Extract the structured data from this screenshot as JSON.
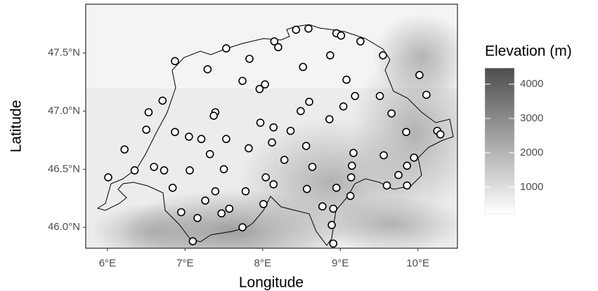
{
  "chart_data": {
    "type": "scatter",
    "x_label": "Longitude",
    "y_label": "Latitude",
    "xlim": [
      5.72,
      10.51
    ],
    "ylim": [
      45.82,
      47.92
    ],
    "xticks": [
      {
        "value": 6,
        "label": "6°E"
      },
      {
        "value": 7,
        "label": "7°E"
      },
      {
        "value": 8,
        "label": "8°E"
      },
      {
        "value": 9,
        "label": "9°E"
      },
      {
        "value": 10,
        "label": "10°E"
      }
    ],
    "yticks": [
      {
        "value": 46.0,
        "label": "46.0°N"
      },
      {
        "value": 46.5,
        "label": "46.5°N"
      },
      {
        "value": 47.0,
        "label": "47.0°N"
      },
      {
        "value": 47.5,
        "label": "47.5°N"
      }
    ],
    "marker_fill": "#ffffff",
    "marker_stroke": "#000000",
    "x": [
      8.43,
      8.59,
      8.95,
      9.01,
      8.15,
      8.2,
      9.26,
      7.53,
      9.55,
      6.87,
      7.83,
      8.87,
      8.52,
      10.02,
      7.29,
      9.08,
      7.74,
      8.03,
      7.96,
      10.11,
      9.19,
      9.51,
      8.6,
      6.71,
      6.53,
      7.39,
      7.37,
      9.04,
      8.49,
      9.66,
      7.97,
      8.14,
      6.5,
      6.87,
      7.05,
      7.21,
      7.53,
      8.36,
      8.86,
      8.12,
      7.82,
      8.56,
      7.32,
      9.17,
      10.25,
      10.29,
      9.85,
      6.22,
      8.28,
      8.64,
      6.6,
      6.73,
      6.35,
      7.06,
      7.5,
      9.15,
      9.56,
      9.95,
      9.86,
      9.75,
      6.01,
      8.04,
      8.14,
      9.14,
      6.84,
      8.57,
      7.39,
      8.95,
      9.86,
      9.6,
      7.78,
      7.26,
      9.13,
      7.57,
      6.95,
      7.47,
      8.01,
      8.77,
      8.91,
      7.16,
      7.74,
      8.89,
      7.1,
      8.91
    ],
    "y": [
      47.7,
      47.71,
      47.67,
      47.65,
      47.6,
      47.55,
      47.6,
      47.54,
      47.48,
      47.43,
      47.45,
      47.48,
      47.38,
      47.31,
      47.36,
      47.27,
      47.26,
      47.23,
      47.19,
      47.14,
      47.13,
      47.13,
      47.08,
      47.09,
      46.99,
      46.99,
      46.96,
      47.04,
      47.0,
      46.98,
      46.9,
      46.86,
      46.84,
      46.82,
      46.78,
      46.76,
      46.76,
      46.83,
      46.93,
      46.73,
      46.68,
      46.7,
      46.63,
      46.64,
      46.83,
      46.8,
      46.82,
      46.67,
      46.58,
      46.52,
      46.52,
      46.49,
      46.49,
      46.49,
      46.5,
      46.53,
      46.62,
      46.6,
      46.53,
      46.45,
      46.43,
      46.43,
      46.37,
      46.43,
      46.34,
      46.33,
      46.31,
      46.34,
      46.36,
      46.36,
      46.31,
      46.23,
      46.27,
      46.16,
      46.13,
      46.12,
      46.2,
      46.18,
      46.16,
      46.08,
      46.0,
      46.02,
      45.88,
      45.86
    ],
    "colorbar": {
      "title": "Elevation (m)",
      "lim": [
        220,
        4470
      ],
      "ticks": [
        1000,
        2000,
        3000,
        4000
      ],
      "colors": [
        "#ffffff",
        "#4d4d4d"
      ]
    }
  }
}
